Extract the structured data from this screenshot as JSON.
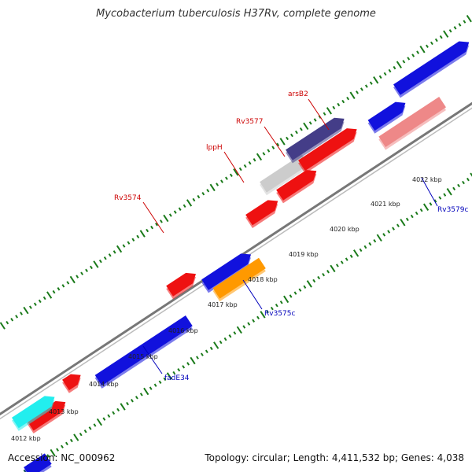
{
  "title": "Mycobacterium tuberculosis H37Rv, complete genome",
  "footer": {
    "accession": "Accession: NC_000962",
    "info": "Topology: circular; Length: 4,411,532 bp; Genes: 4,038"
  },
  "colors": {
    "backbone": "#888888",
    "tick": "#1a7a1a",
    "label_plus": "#cc0000",
    "label_minus": "#0000bb"
  },
  "kbp_ticks": [
    "4012 kbp",
    "4013 kbp",
    "4014 kbp",
    "4015 kbp",
    "4016 kbp",
    "4017 kbp",
    "4018 kbp",
    "4019 kbp",
    "4020 kbp",
    "4021 kbp",
    "4022 kbp"
  ],
  "gene_labels": [
    {
      "id": "Rv3574",
      "text": "Rv3574",
      "strand": "plus"
    },
    {
      "id": "lppH",
      "text": "lppH",
      "strand": "plus"
    },
    {
      "id": "Rv3577",
      "text": "Rv3577",
      "strand": "plus"
    },
    {
      "id": "arsB2",
      "text": "arsB2",
      "strand": "plus"
    },
    {
      "id": "fadE34",
      "text": "fadE34",
      "strand": "minus"
    },
    {
      "id": "Rv3575c",
      "text": "Rv3575c",
      "strand": "minus"
    },
    {
      "id": "Rv3579c",
      "text": "Rv3579c",
      "strand": "minus"
    }
  ],
  "feature_colors": {
    "red": "#ee1111",
    "blue": "#1111dd",
    "cyan": "#22eeee",
    "gray": "#cccccc",
    "navy": "#443d88",
    "orange": "#ff9900",
    "pink": "#ee8888"
  }
}
